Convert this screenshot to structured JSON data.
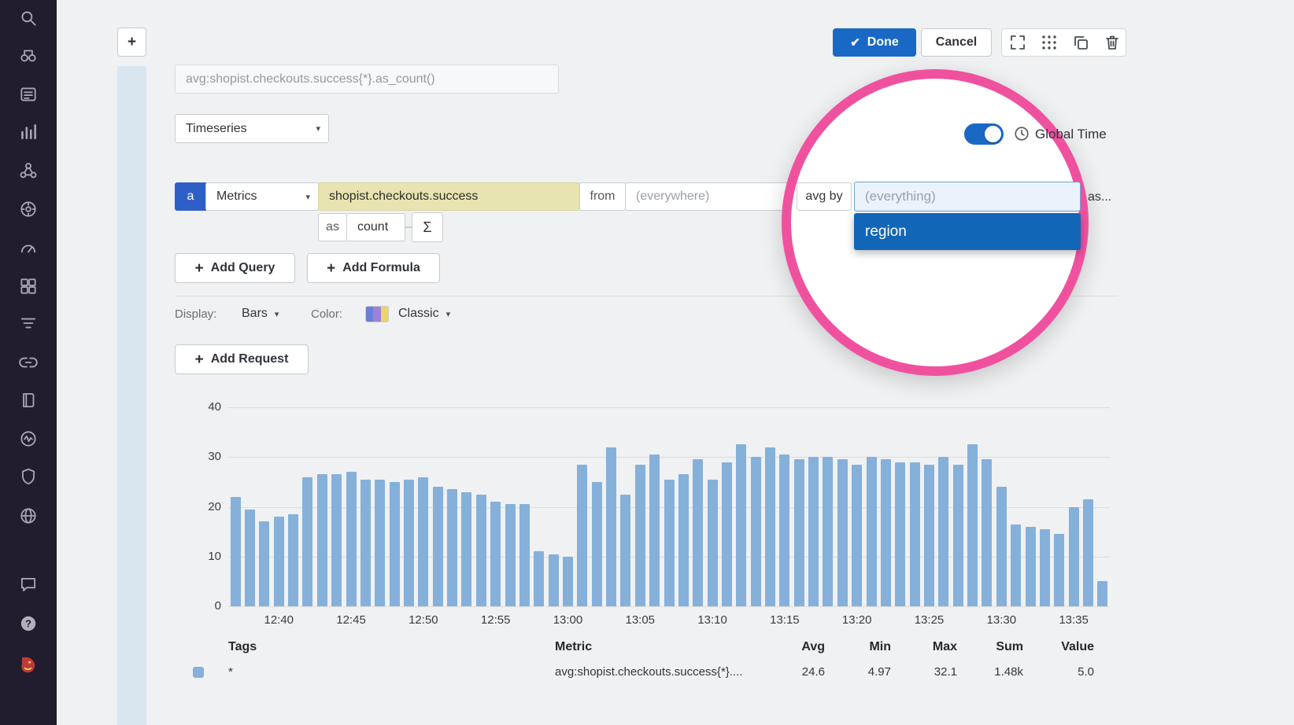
{
  "colors": {
    "primary_blue": "#1a68c5",
    "query_letter_blue": "#2d5fc7",
    "selection_blue": "#1266b8",
    "highlight_pink": "#f0519f",
    "bar_blue": "#85b0da",
    "metric_field_yellow": "#e8e4b2",
    "sidebar_bg": "#211c2e",
    "widget_strip_blue": "#d9e6f0"
  },
  "toolbar": {
    "done": "Done",
    "cancel": "Cancel"
  },
  "editor": {
    "add_tile": "+",
    "query_preview": "avg:shopist.checkouts.success{*}.as_count()",
    "visualization": "Timeseries",
    "global_time": "Global Time",
    "query": {
      "letter": "a",
      "source": "Metrics",
      "metric": "shopist.checkouts.success",
      "from_label": "from",
      "scope": "(everywhere)",
      "agg_label": "avg by",
      "group_value": "(everything)",
      "group_option": "region",
      "as_label": "as",
      "rollup": "count",
      "sigma": "Σ",
      "as_truncated": "as..."
    },
    "actions": {
      "plus": "+",
      "add_query": "Add Query",
      "add_formula": "Add Formula",
      "add_request": "Add Request"
    },
    "display": {
      "display_label": "Display:",
      "display_value": "Bars",
      "color_label": "Color:",
      "color_value": "Classic"
    }
  },
  "chart_data": {
    "type": "bar",
    "title": "",
    "xlabel": "",
    "ylabel": "",
    "ylim": [
      0,
      40
    ],
    "yticks": [
      0,
      10,
      20,
      30,
      40
    ],
    "grid": true,
    "legend_position": "bottom-table",
    "bar_color": "#85b0da",
    "xticks": [
      "12:40",
      "12:45",
      "12:50",
      "12:55",
      "13:00",
      "13:05",
      "13:10",
      "13:15",
      "13:20",
      "13:25",
      "13:30",
      "13:35"
    ],
    "xtick_indices": [
      3,
      8,
      13,
      18,
      23,
      28,
      33,
      38,
      43,
      48,
      53,
      58
    ],
    "values": [
      22,
      19.5,
      17,
      18,
      18.5,
      26,
      26.5,
      26.5,
      27,
      25.5,
      25.5,
      25,
      25.5,
      26,
      24,
      23.5,
      23,
      22.5,
      21,
      20.5,
      20.5,
      11,
      10.5,
      10,
      28.5,
      25,
      32,
      22.5,
      28.5,
      30.5,
      25.5,
      26.5,
      29.5,
      25.5,
      29,
      32.5,
      30,
      32,
      30.5,
      29.5,
      30,
      30,
      29.5,
      28.5,
      30,
      29.5,
      29,
      29,
      28.5,
      30,
      28.5,
      32.5,
      29.5,
      24,
      16.5,
      16,
      15.5,
      14.5,
      20,
      21.5,
      5
    ]
  },
  "legend_table": {
    "headers": [
      "Tags",
      "Metric",
      "Avg",
      "Min",
      "Max",
      "Sum",
      "Value"
    ],
    "rows": [
      {
        "tag": "*",
        "metric": "avg:shopist.checkouts.success{*}....",
        "avg": "24.6",
        "min": "4.97",
        "max": "32.1",
        "sum": "1.48k",
        "value": "5.0"
      }
    ]
  },
  "sidebar": {
    "items": [
      "search",
      "watchdog",
      "events",
      "metrics",
      "apm",
      "synthetics",
      "dashboards",
      "infrastructure",
      "logs",
      "integrations",
      "notebooks",
      "monitors",
      "security",
      "network",
      "chat",
      "help",
      "datadog-logo"
    ]
  }
}
